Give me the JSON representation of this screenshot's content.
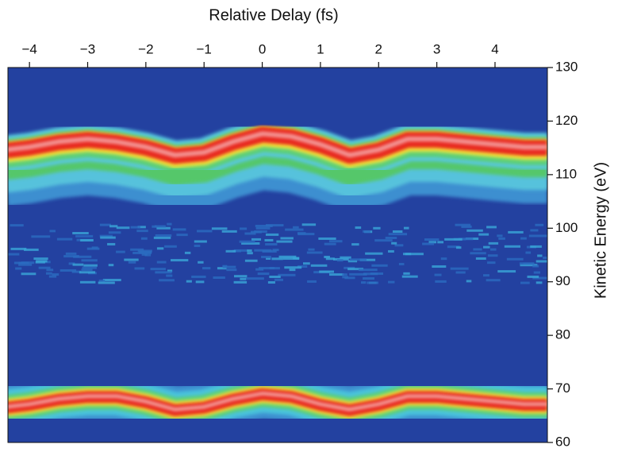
{
  "chart_data": {
    "type": "heatmap",
    "title": "Relative Delay (fs)",
    "y_label": "Kinetic Energy (eV)",
    "xlim": [
      -4.37,
      4.9
    ],
    "ylim": [
      60,
      130
    ],
    "xticks": [
      {
        "value": -4,
        "label": "−4"
      },
      {
        "value": -3,
        "label": "−3"
      },
      {
        "value": -2,
        "label": "−2"
      },
      {
        "value": -1,
        "label": "−1"
      },
      0,
      1,
      2,
      3,
      4
    ],
    "yticks": [
      60,
      70,
      80,
      90,
      100,
      110,
      120,
      130
    ],
    "x": [
      -4.4,
      -4,
      -3.5,
      -3,
      -2.5,
      -2,
      -1.5,
      -1,
      -0.5,
      0,
      0.5,
      1,
      1.5,
      2,
      2.5,
      3,
      3.5,
      4,
      4.5,
      4.9
    ],
    "series": [
      {
        "color": "#e8261c",
        "values": [
          114.5,
          115,
          116,
          116.5,
          116,
          115,
          113.5,
          114,
          116,
          117.5,
          117,
          115.5,
          113.5,
          114.5,
          116.5,
          116.5,
          116,
          115.5,
          115,
          115
        ]
      },
      {
        "color": "#e8261c",
        "values": [
          66.5,
          67,
          68,
          68.5,
          68.5,
          67.5,
          66,
          66.5,
          68,
          69,
          68.5,
          67,
          66,
          67,
          68.5,
          68.5,
          68,
          67.5,
          67,
          67
        ]
      }
    ]
  }
}
